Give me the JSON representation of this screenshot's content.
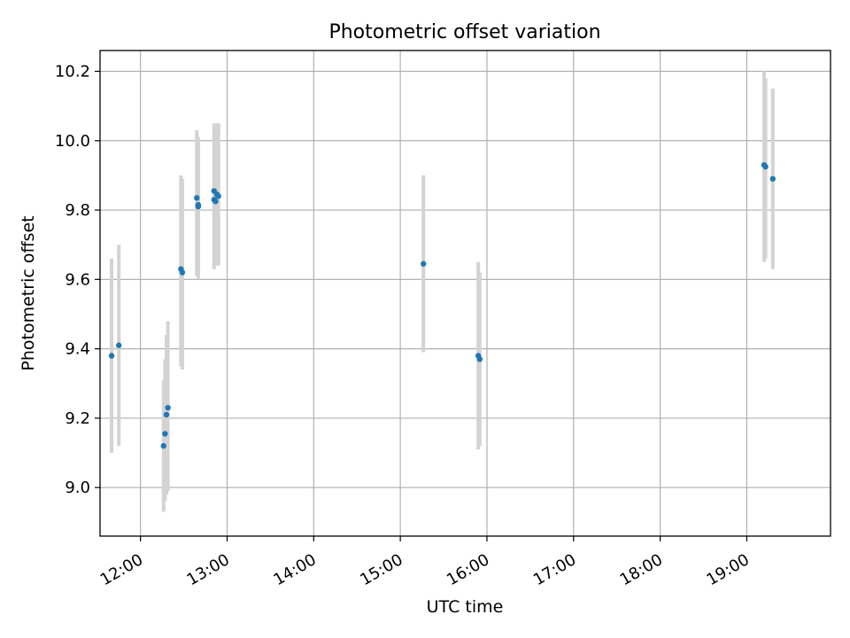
{
  "chart_data": {
    "type": "scatter",
    "title": "Photometric offset variation",
    "xlabel": "UTC time",
    "ylabel": "Photometric offset",
    "x_range": [
      "11:32",
      "19:58"
    ],
    "ylim": [
      8.86,
      10.26
    ],
    "x_ticks": [
      "12:00",
      "13:00",
      "14:00",
      "15:00",
      "16:00",
      "17:00",
      "18:00",
      "19:00"
    ],
    "y_ticks": [
      "9.0",
      "9.2",
      "9.4",
      "9.6",
      "9.8",
      "10.0",
      "10.2"
    ],
    "grid": true,
    "point_color": "#1f77b4",
    "errorbar_color": "#d3d3d3",
    "points": [
      {
        "x": "11:40",
        "y": 9.38,
        "low": 9.1,
        "high": 9.66
      },
      {
        "x": "11:45",
        "y": 9.41,
        "low": 9.12,
        "high": 9.7
      },
      {
        "x": "12:16",
        "y": 9.12,
        "low": 8.93,
        "high": 9.31
      },
      {
        "x": "12:17",
        "y": 9.155,
        "low": 8.96,
        "high": 9.37
      },
      {
        "x": "12:18",
        "y": 9.21,
        "low": 8.98,
        "high": 9.44
      },
      {
        "x": "12:19",
        "y": 9.23,
        "low": 8.99,
        "high": 9.48
      },
      {
        "x": "12:28",
        "y": 9.63,
        "low": 9.35,
        "high": 9.9
      },
      {
        "x": "12:29",
        "y": 9.62,
        "low": 9.34,
        "high": 9.89
      },
      {
        "x": "12:39",
        "y": 9.835,
        "low": 9.61,
        "high": 10.03
      },
      {
        "x": "12:40",
        "y": 9.815,
        "low": 9.62,
        "high": 10.01
      },
      {
        "x": "12:40",
        "y": 9.81,
        "low": 9.6,
        "high": 10.0
      },
      {
        "x": "12:51",
        "y": 9.855,
        "low": 9.63,
        "high": 10.05
      },
      {
        "x": "12:51",
        "y": 9.83,
        "low": 9.63,
        "high": 10.04
      },
      {
        "x": "12:52",
        "y": 9.825,
        "low": 9.64,
        "high": 10.03
      },
      {
        "x": "12:53",
        "y": 9.845,
        "low": 9.64,
        "high": 10.05
      },
      {
        "x": "12:54",
        "y": 9.84,
        "low": 9.64,
        "high": 10.05
      },
      {
        "x": "15:16",
        "y": 9.645,
        "low": 9.39,
        "high": 9.9
      },
      {
        "x": "15:54",
        "y": 9.38,
        "low": 9.11,
        "high": 9.65
      },
      {
        "x": "15:55",
        "y": 9.37,
        "low": 9.12,
        "high": 9.62
      },
      {
        "x": "19:12",
        "y": 9.93,
        "low": 9.65,
        "high": 10.2
      },
      {
        "x": "19:13",
        "y": 9.925,
        "low": 9.66,
        "high": 10.18
      },
      {
        "x": "19:18",
        "y": 9.89,
        "low": 9.63,
        "high": 10.15
      }
    ]
  }
}
